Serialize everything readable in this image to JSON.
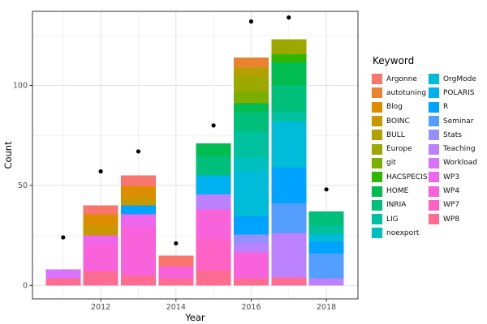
{
  "chart_data": {
    "type": "bar",
    "subtype": "stacked-bar-with-points",
    "title": "",
    "xlabel": "Year",
    "ylabel": "Count",
    "legend_title": "Keyword",
    "legend_position": "right",
    "grid": "on",
    "x_ticks": [
      2012,
      2014,
      2016,
      2018
    ],
    "y_ticks": [
      0,
      50,
      100
    ],
    "xlim": [
      2010.2,
      2018.85
    ],
    "ylim": [
      0,
      137
    ],
    "keywords": [
      {
        "label": "Argonne",
        "color": "#F8766D"
      },
      {
        "label": "autotuning",
        "color": "#EA8331"
      },
      {
        "label": "Blog",
        "color": "#DD8D00"
      },
      {
        "label": "BOINC",
        "color": "#C99800"
      },
      {
        "label": "BULL",
        "color": "#B3A000"
      },
      {
        "label": "Europe",
        "color": "#9CA700"
      },
      {
        "label": "git",
        "color": "#7CAE00"
      },
      {
        "label": "HACSPECIS",
        "color": "#2FB600"
      },
      {
        "label": "HOME",
        "color": "#00BC51"
      },
      {
        "label": "INRIA",
        "color": "#00BF7A"
      },
      {
        "label": "LIG",
        "color": "#00C09E"
      },
      {
        "label": "noexport",
        "color": "#00BFC0"
      },
      {
        "label": "OrgMode",
        "color": "#00BCD9"
      },
      {
        "label": "POLARIS",
        "color": "#00B1F0"
      },
      {
        "label": "R",
        "color": "#00A3FF"
      },
      {
        "label": "Seminar",
        "color": "#549EFF"
      },
      {
        "label": "Stats",
        "color": "#9590FF"
      },
      {
        "label": "Teaching",
        "color": "#BC81FF"
      },
      {
        "label": "Workload",
        "color": "#DA73FB"
      },
      {
        "label": "WP3",
        "color": "#ED66EC"
      },
      {
        "label": "WP4",
        "color": "#F863DC"
      },
      {
        "label": "WP7",
        "color": "#FF62C5"
      },
      {
        "label": "WP8",
        "color": "#FF6C92"
      }
    ],
    "bars": [
      {
        "year": 2011,
        "total": 8,
        "segments_bottom_to_top": [
          {
            "keyword": "WP8",
            "value": 3.5
          },
          {
            "keyword": "Workload",
            "value": 4.5
          }
        ]
      },
      {
        "year": 2012,
        "total": 40,
        "segments_bottom_to_top": [
          {
            "keyword": "WP8",
            "value": 7
          },
          {
            "keyword": "WP4",
            "value": 13.5
          },
          {
            "keyword": "WP3",
            "value": 4.5
          },
          {
            "keyword": "BOINC",
            "value": 5
          },
          {
            "keyword": "Blog",
            "value": 5.5
          },
          {
            "keyword": "Argonne",
            "value": 4.5
          }
        ]
      },
      {
        "year": 2013,
        "total": 55,
        "segments_bottom_to_top": [
          {
            "keyword": "WP8",
            "value": 5
          },
          {
            "keyword": "WP4",
            "value": 24
          },
          {
            "keyword": "WP3",
            "value": 6.5
          },
          {
            "keyword": "R",
            "value": 4.5
          },
          {
            "keyword": "BOINC",
            "value": 4
          },
          {
            "keyword": "Blog",
            "value": 5.5
          },
          {
            "keyword": "Argonne",
            "value": 5.5
          }
        ]
      },
      {
        "year": 2014,
        "total": 15,
        "segments_bottom_to_top": [
          {
            "keyword": "WP8",
            "value": 3.5
          },
          {
            "keyword": "WP4",
            "value": 6
          },
          {
            "keyword": "Argonne",
            "value": 5.5
          }
        ]
      },
      {
        "year": 2015,
        "total": 71,
        "segments_bottom_to_top": [
          {
            "keyword": "WP8",
            "value": 7.5
          },
          {
            "keyword": "WP7",
            "value": 15.5
          },
          {
            "keyword": "WP4",
            "value": 15
          },
          {
            "keyword": "Teaching",
            "value": 7.5
          },
          {
            "keyword": "POLARIS",
            "value": 9.5
          },
          {
            "keyword": "INRIA",
            "value": 9.5
          },
          {
            "keyword": "HOME",
            "value": 6.5
          }
        ]
      },
      {
        "year": 2016,
        "total": 114,
        "segments_bottom_to_top": [
          {
            "keyword": "WP8",
            "value": 3.5
          },
          {
            "keyword": "WP4",
            "value": 13
          },
          {
            "keyword": "Teaching",
            "value": 4.5
          },
          {
            "keyword": "Stats",
            "value": 4.5
          },
          {
            "keyword": "R",
            "value": 9
          },
          {
            "keyword": "OrgMode",
            "value": 22.5
          },
          {
            "keyword": "noexport",
            "value": 7
          },
          {
            "keyword": "LIG",
            "value": 13
          },
          {
            "keyword": "INRIA",
            "value": 9.5
          },
          {
            "keyword": "HOME",
            "value": 4.5
          },
          {
            "keyword": "git",
            "value": 6
          },
          {
            "keyword": "Europe",
            "value": 7.5
          },
          {
            "keyword": "BULL",
            "value": 4.5
          },
          {
            "keyword": "autotuning",
            "value": 5
          }
        ]
      },
      {
        "year": 2017,
        "total": 123,
        "segments_bottom_to_top": [
          {
            "keyword": "WP8",
            "value": 4
          },
          {
            "keyword": "Teaching",
            "value": 22
          },
          {
            "keyword": "Seminar",
            "value": 15
          },
          {
            "keyword": "R",
            "value": 18
          },
          {
            "keyword": "OrgMode",
            "value": 23
          },
          {
            "keyword": "LIG",
            "value": 5
          },
          {
            "keyword": "INRIA",
            "value": 13
          },
          {
            "keyword": "HOME",
            "value": 11.5
          },
          {
            "keyword": "HACSPECIS",
            "value": 4
          },
          {
            "keyword": "Europe",
            "value": 7.5
          }
        ]
      },
      {
        "year": 2018,
        "total": 37,
        "segments_bottom_to_top": [
          {
            "keyword": "Teaching",
            "value": 3.5
          },
          {
            "keyword": "Seminar",
            "value": 12.5
          },
          {
            "keyword": "R",
            "value": 6
          },
          {
            "keyword": "OrgMode",
            "value": 3.5
          },
          {
            "keyword": "LIG",
            "value": 4.5
          },
          {
            "keyword": "INRIA",
            "value": 7
          }
        ]
      }
    ],
    "points": [
      {
        "year": 2011,
        "value": 24
      },
      {
        "year": 2012,
        "value": 57
      },
      {
        "year": 2013,
        "value": 67
      },
      {
        "year": 2014,
        "value": 21
      },
      {
        "year": 2015,
        "value": 80
      },
      {
        "year": 2016,
        "value": 132
      },
      {
        "year": 2017,
        "value": 134
      },
      {
        "year": 2018,
        "value": 48
      }
    ]
  }
}
